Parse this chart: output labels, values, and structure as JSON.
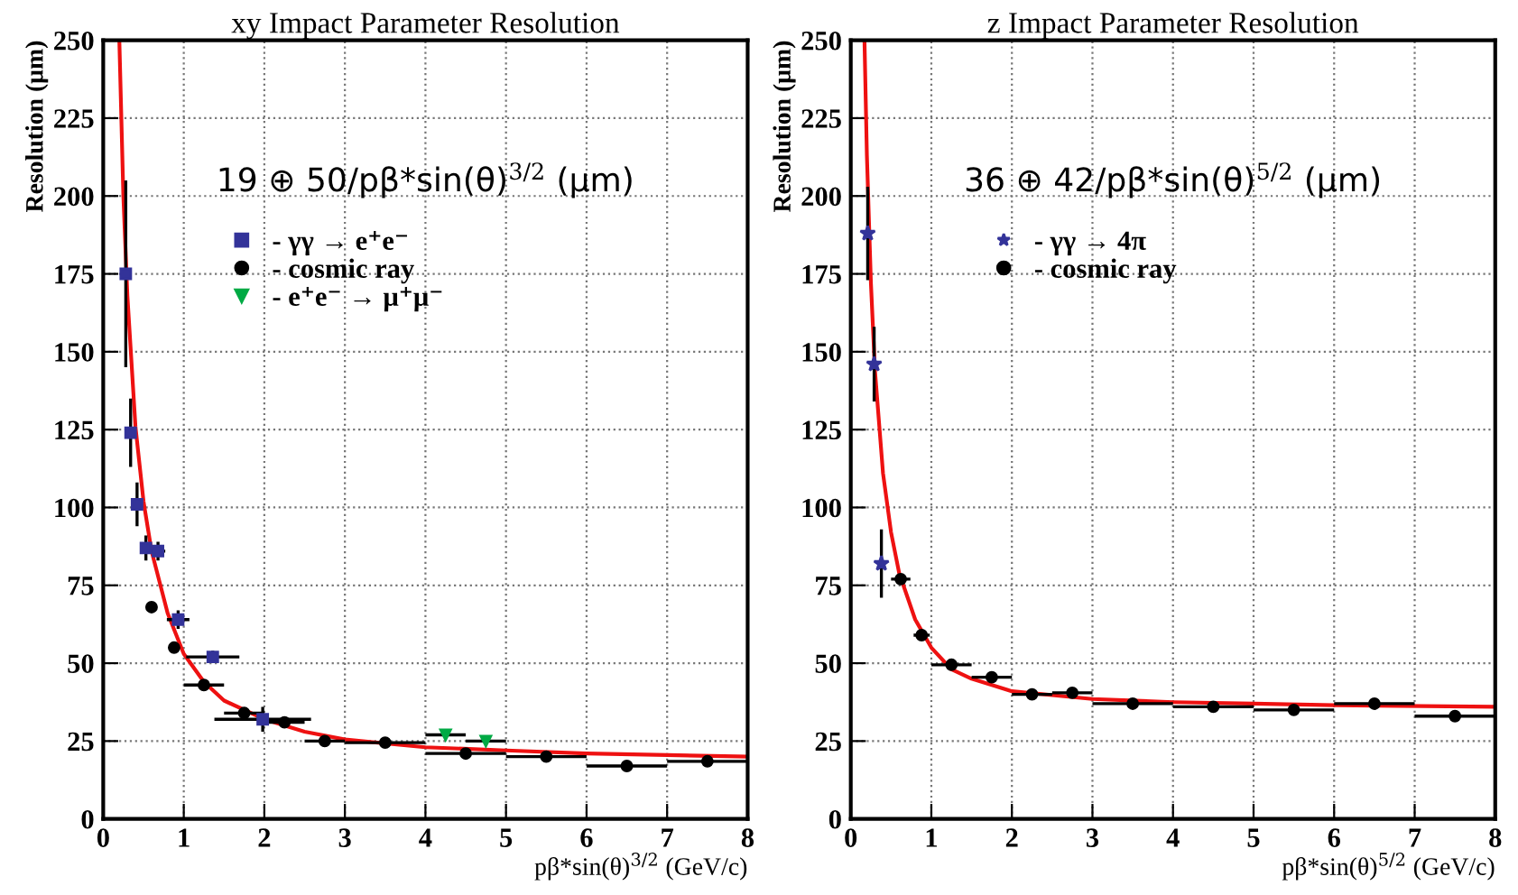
{
  "chart_data": [
    {
      "type": "scatter",
      "title": "xy Impact Parameter Resolution",
      "xlabel": "pβ*sin(θ)$^{3/2}$ (GeV/c)",
      "ylabel": "Resolution (μm)",
      "xlim": [
        0,
        8
      ],
      "ylim": [
        0,
        250
      ],
      "xticks": [
        0,
        1,
        2,
        3,
        4,
        5,
        6,
        7,
        8
      ],
      "yticks": [
        0,
        25,
        50,
        75,
        100,
        125,
        150,
        175,
        200,
        225,
        250
      ],
      "grid": true,
      "legend": "top",
      "annotations": [
        "19 ⊕ 50/pβ*sin(θ)$^{3/2}$ (μm)"
      ],
      "series": [
        {
          "name": "- γγ → e⁺e⁻",
          "color": "#333399",
          "marker": "square",
          "x": [
            0.28,
            0.34,
            0.42,
            0.53,
            0.68,
            0.93,
            1.36,
            1.98
          ],
          "values": [
            175,
            124,
            101,
            87,
            86,
            64,
            52,
            32
          ],
          "errors": [
            30,
            11,
            7,
            4,
            3,
            3,
            2,
            4
          ],
          "xerrors": [
            null,
            null,
            null,
            null,
            0.09,
            0.14,
            0.33,
            0.6
          ]
        },
        {
          "name": "- cosmic ray",
          "color": "#000000",
          "marker": "circle",
          "x": [
            0.6,
            0.88,
            1.25,
            1.75,
            2.25,
            2.75,
            3.5,
            4.5,
            5.5,
            6.5,
            7.5
          ],
          "values": [
            68,
            55,
            43,
            34,
            31,
            25,
            24.5,
            21,
            20,
            17,
            18.5
          ],
          "xerrors": [
            0.07,
            0.05,
            0.25,
            0.25,
            0.25,
            0.25,
            0.5,
            0.5,
            0.5,
            0.5,
            0.5
          ]
        },
        {
          "name": "- e⁺e⁻ → μ⁺μ⁻",
          "color": "#00aa44",
          "marker": "triangle",
          "x": [
            4.25,
            4.75
          ],
          "values": [
            27,
            25
          ],
          "xerrors": [
            0.25,
            0.25
          ]
        },
        {
          "type": "line",
          "color": "#ee1111",
          "marker": "none",
          "x": [
            0.2,
            0.25,
            0.3,
            0.4,
            0.5,
            0.6,
            0.8,
            1,
            1.25,
            1.5,
            2,
            2.5,
            3,
            4,
            5,
            6,
            7,
            8
          ],
          "values": [
            250,
            200,
            168,
            126,
            102,
            86,
            66,
            53,
            44,
            38,
            32,
            28,
            25.5,
            23,
            22,
            21,
            20.5,
            20
          ]
        }
      ]
    },
    {
      "type": "scatter",
      "title": "z Impact Parameter Resolution",
      "xlabel": "pβ*sin(θ)$^{5/2}$ (GeV/c)",
      "ylabel": "Resolution (μm)",
      "xlim": [
        0,
        8
      ],
      "ylim": [
        0,
        250
      ],
      "xticks": [
        0,
        1,
        2,
        3,
        4,
        5,
        6,
        7,
        8
      ],
      "yticks": [
        0,
        25,
        50,
        75,
        100,
        125,
        150,
        175,
        200,
        225,
        250
      ],
      "grid": true,
      "legend": "top",
      "annotations": [
        "36 ⊕ 42/pβ*sin(θ)$^{5/2}$ (μm)"
      ],
      "series": [
        {
          "name": "- γγ → 4π",
          "color": "#333399",
          "marker": "star",
          "x": [
            0.21,
            0.29,
            0.38
          ],
          "values": [
            188,
            146,
            82
          ],
          "errors": [
            15,
            12,
            11
          ]
        },
        {
          "name": "- cosmic ray",
          "color": "#000000",
          "marker": "circle",
          "x": [
            0.62,
            0.88,
            1.25,
            1.75,
            2.25,
            2.75,
            3.5,
            4.5,
            5.5,
            6.5,
            7.5
          ],
          "values": [
            77,
            59,
            49.5,
            45.5,
            40,
            40.5,
            37,
            36,
            35,
            37,
            33
          ],
          "xerrors": [
            0.12,
            0.1,
            0.25,
            0.25,
            0.25,
            0.25,
            0.5,
            0.5,
            0.5,
            0.5,
            0.5
          ]
        },
        {
          "type": "line",
          "color": "#ee1111",
          "marker": "none",
          "x": [
            0.17,
            0.2,
            0.25,
            0.3,
            0.4,
            0.5,
            0.6,
            0.8,
            1,
            1.25,
            1.5,
            2,
            3,
            4,
            5,
            6,
            8
          ],
          "values": [
            250,
            213,
            172,
            144,
            111,
            92,
            79,
            64,
            55,
            48,
            45,
            41,
            38.5,
            37.5,
            37,
            36.5,
            36
          ]
        }
      ]
    }
  ]
}
